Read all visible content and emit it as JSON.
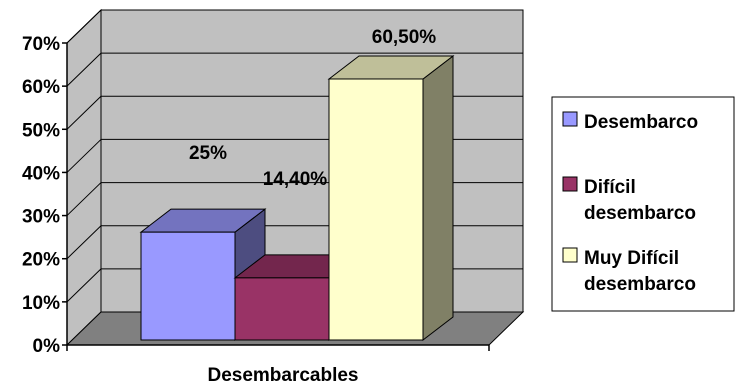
{
  "chart_data": {
    "type": "bar",
    "style": "3d-clustered-column",
    "categories": [
      "Desembarcables"
    ],
    "xlabel": "Desembarcables",
    "ylabel": "",
    "ylim": [
      0,
      70
    ],
    "yticks": [
      "0%",
      "10%",
      "20%",
      "30%",
      "40%",
      "50%",
      "60%",
      "70%"
    ],
    "grid": true,
    "legend_position": "right",
    "series": [
      {
        "name": "Desembarco",
        "value": 25,
        "label": "25%",
        "color": "#9999ff"
      },
      {
        "name": "Difícil desembarco",
        "value": 14.4,
        "label": "14,40%",
        "color": "#993366"
      },
      {
        "name": "Muy Difícil desembarco",
        "value": 60.5,
        "label": "60,50%",
        "color": "#ffffcc"
      }
    ],
    "legend": [
      {
        "lines": [
          "Desembarco"
        ]
      },
      {
        "lines": [
          "Difícil",
          "desembarco"
        ]
      },
      {
        "lines": [
          "Muy Difícil",
          "desembarco"
        ]
      }
    ],
    "colors": {
      "wall": "#c0c0c0",
      "floor": "#808080",
      "grid": "#000000"
    }
  }
}
